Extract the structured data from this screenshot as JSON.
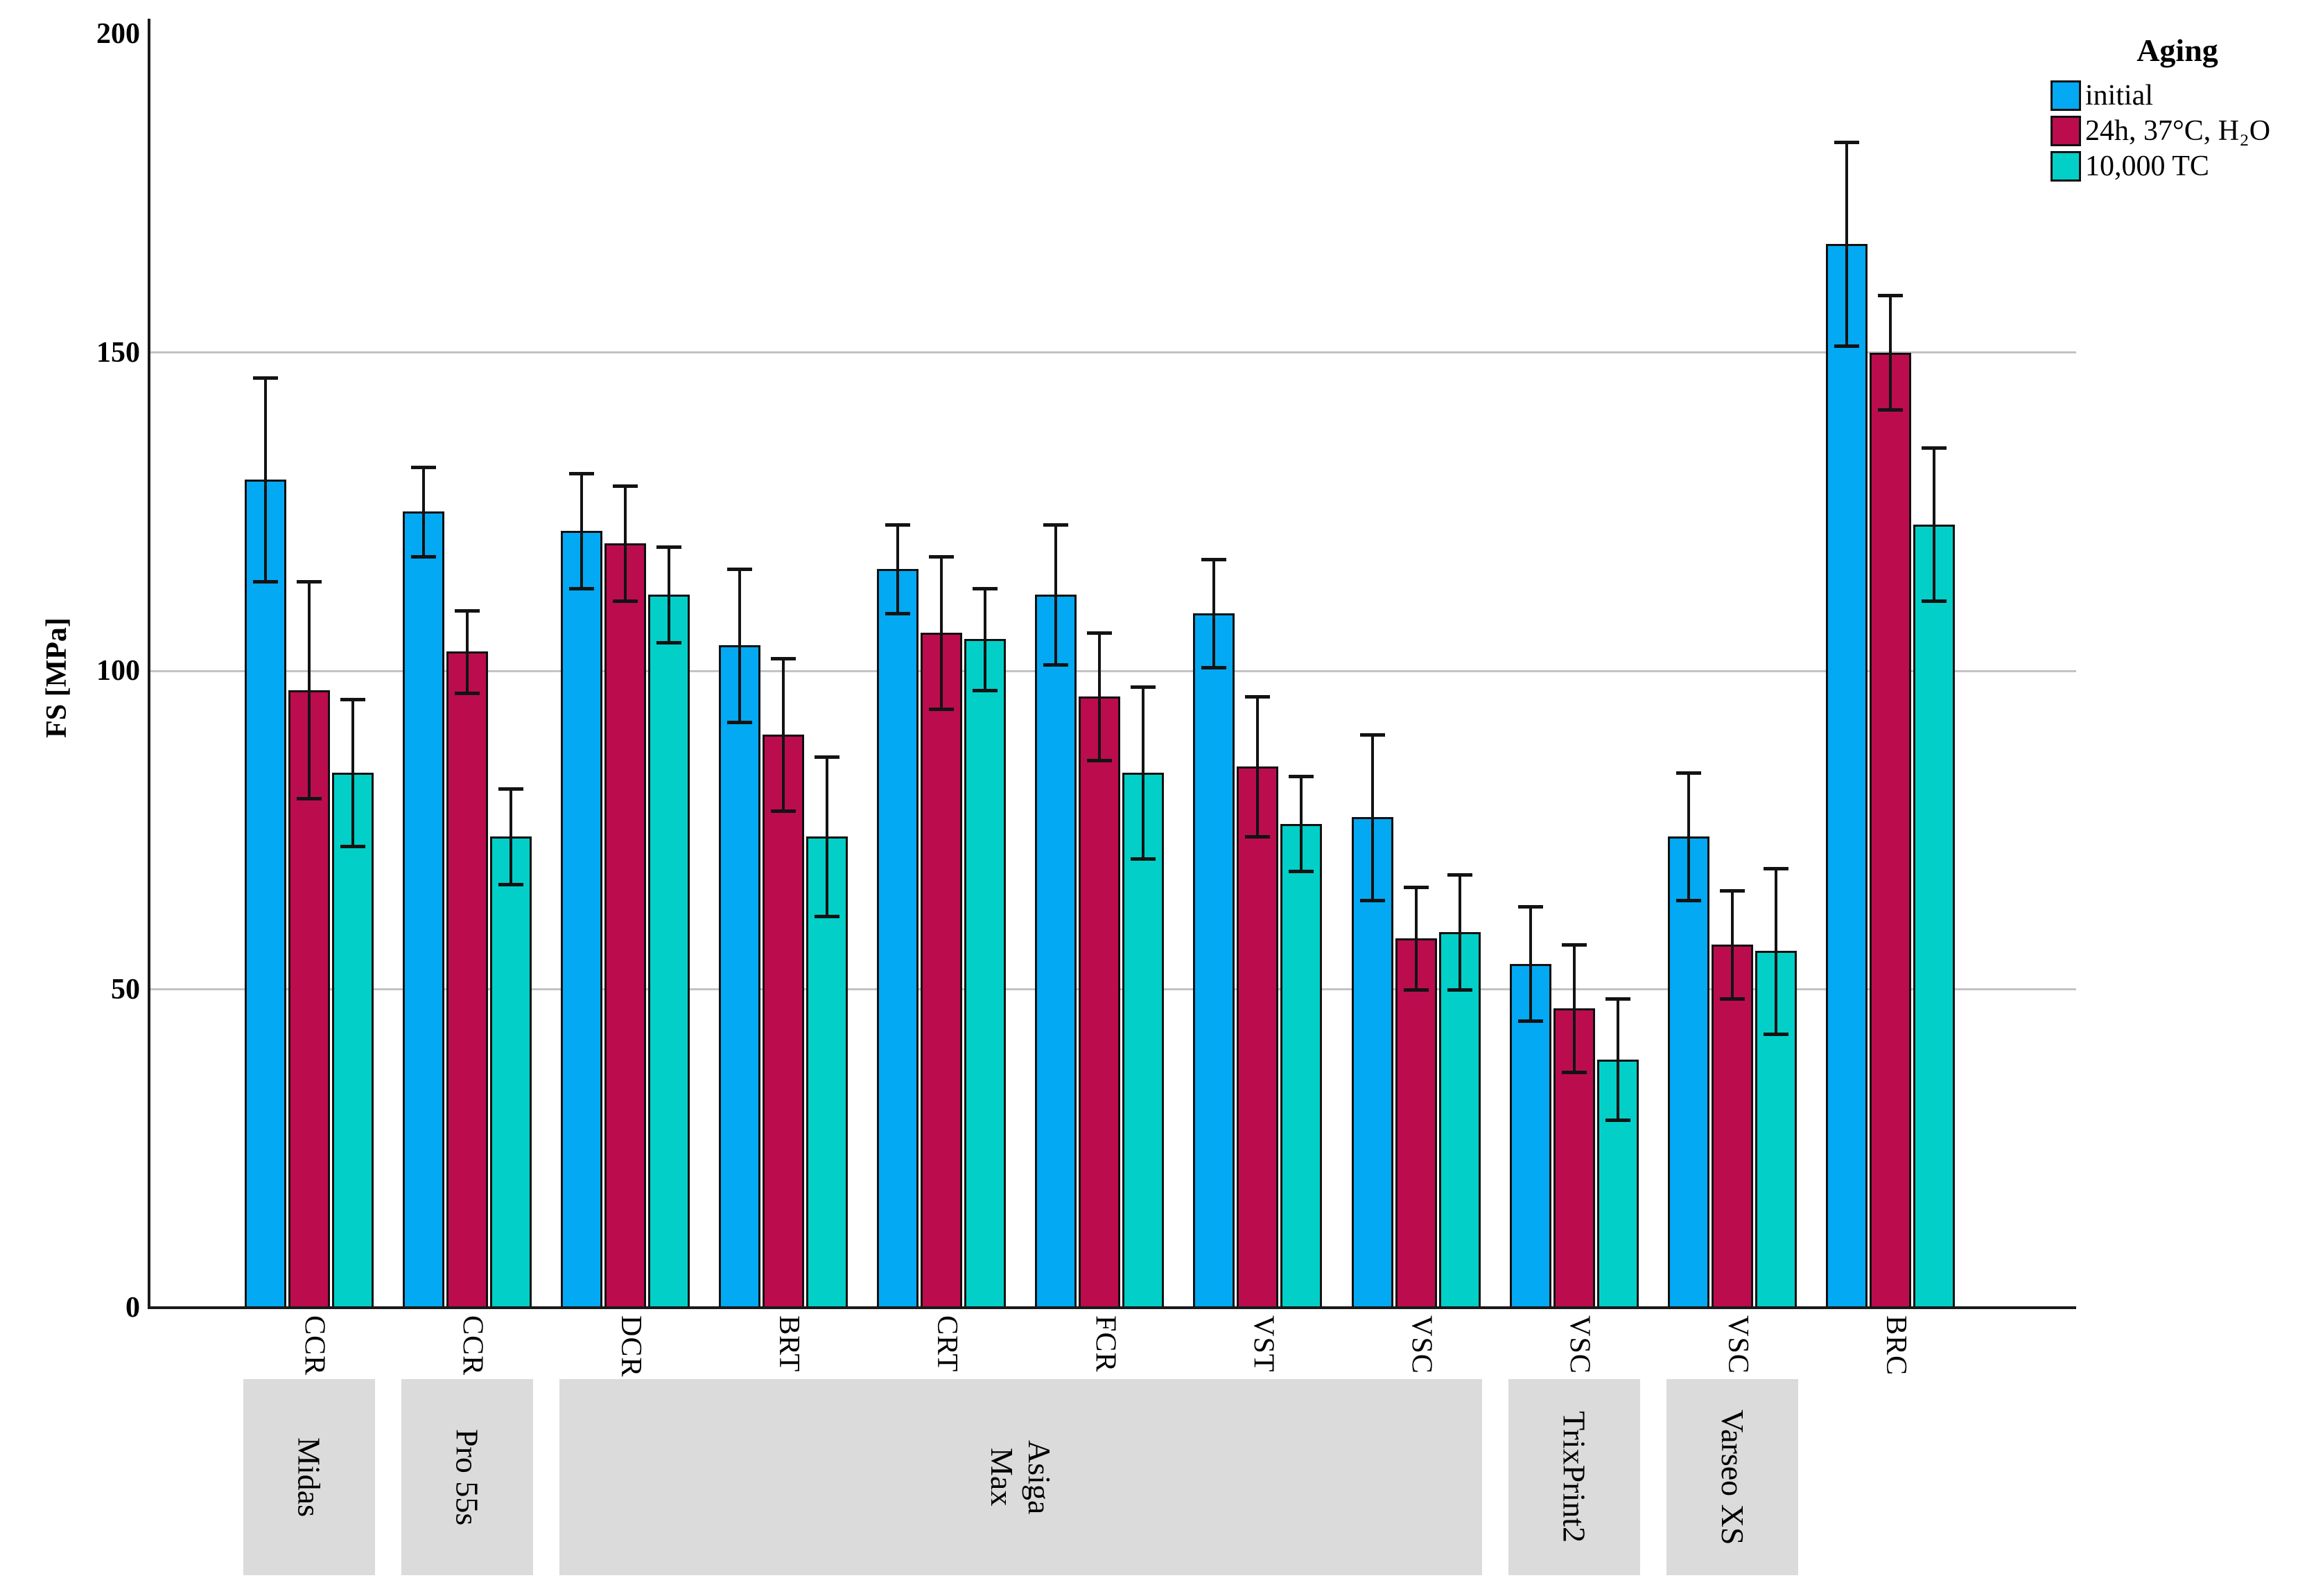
{
  "chart_data": {
    "type": "bar",
    "title": "",
    "xlabel": "",
    "ylabel": "FS [MPa]",
    "ylim": [
      0,
      200
    ],
    "yticks": [
      0,
      50,
      100,
      150,
      200
    ],
    "gridlines": [
      50,
      100,
      150
    ],
    "grid": "horizontal",
    "legend": {
      "title": "Aging",
      "position": "top-right"
    },
    "categories": [
      "CCR",
      "CCR",
      "DCR",
      "BRT",
      "CRT",
      "FCR",
      "VST",
      "VSC",
      "VSC",
      "VSC",
      "BRC"
    ],
    "printer_groups": [
      {
        "label": "Midas",
        "start": 0,
        "end": 0
      },
      {
        "label": "Pro 55s",
        "start": 1,
        "end": 1
      },
      {
        "label": "Asiga\nMax",
        "start": 2,
        "end": 7
      },
      {
        "label": "TrixPrint2",
        "start": 8,
        "end": 8
      },
      {
        "label": "Varseo XS",
        "start": 9,
        "end": 9
      }
    ],
    "series": [
      {
        "name": "initial",
        "color": "#03A9F2",
        "values": [
          130,
          125,
          122,
          104,
          116,
          112,
          109,
          77,
          54,
          74,
          167
        ],
        "errors": [
          16,
          7,
          9,
          12,
          7,
          11,
          8.5,
          13,
          9,
          10,
          16
        ]
      },
      {
        "name": "24h, 37°C, H₂O",
        "color": "#BB0C4E",
        "values": [
          97,
          103,
          120,
          90,
          106,
          96,
          85,
          58,
          47,
          57,
          150
        ],
        "errors": [
          17,
          6.5,
          9,
          12,
          12,
          10,
          11,
          8,
          10,
          8.5,
          9
        ]
      },
      {
        "name": "10,000 TC",
        "color": "#02D0C8",
        "values": [
          84,
          74,
          112,
          74,
          105,
          84,
          76,
          59,
          39,
          56,
          123
        ],
        "errors": [
          11.5,
          7.5,
          7.5,
          12.5,
          8,
          13.5,
          7.5,
          9,
          9.5,
          13,
          12
        ]
      }
    ]
  }
}
